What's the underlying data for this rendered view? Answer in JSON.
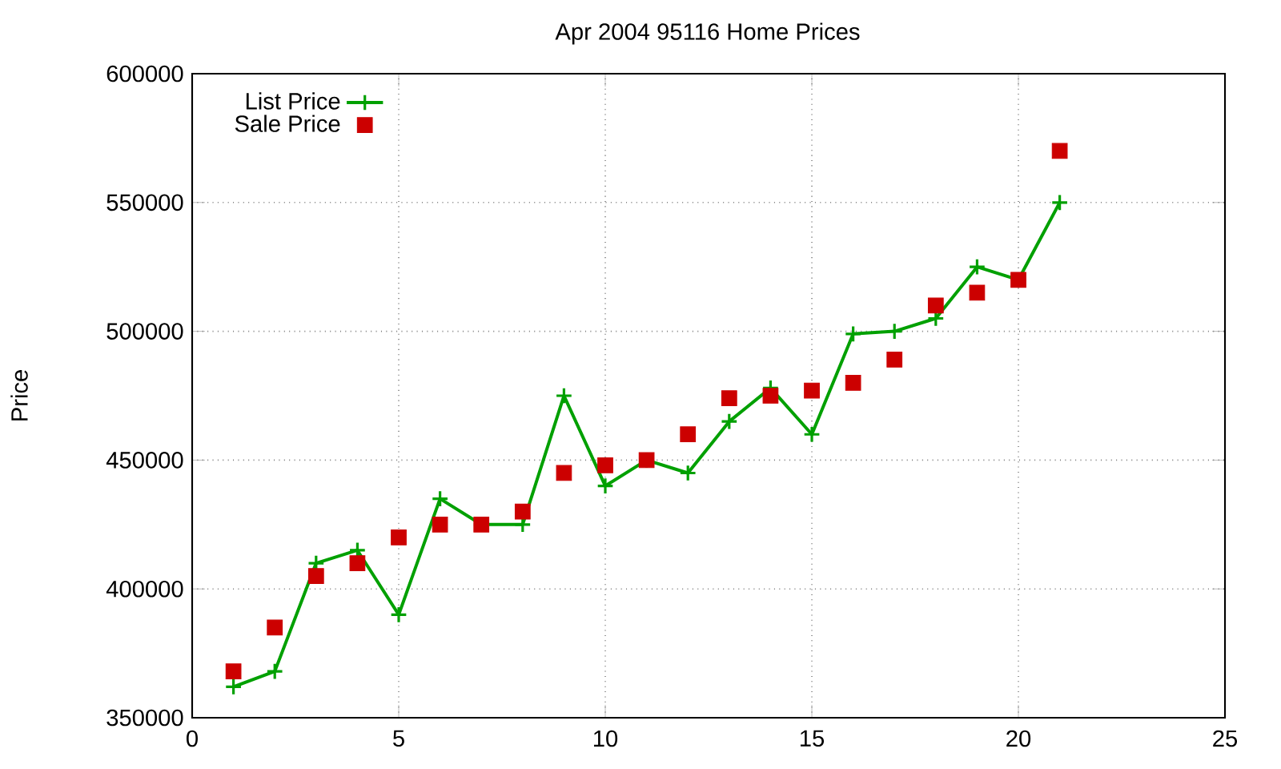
{
  "chart_data": {
    "type": "line",
    "title": "Apr 2004 95116 Home Prices",
    "ylabel": "Price",
    "x": [
      1,
      2,
      3,
      4,
      5,
      6,
      7,
      8,
      9,
      10,
      11,
      12,
      13,
      14,
      15,
      16,
      17,
      18,
      19,
      20,
      21
    ],
    "series": [
      {
        "name": "List Price",
        "marker": "cross",
        "color": "#00a000",
        "values": [
          362000,
          368000,
          410000,
          415000,
          390000,
          435000,
          425000,
          425000,
          475000,
          440000,
          450000,
          445000,
          465000,
          478000,
          460000,
          499000,
          500000,
          505000,
          525000,
          520000,
          550000
        ]
      },
      {
        "name": "Sale Price",
        "type": "scatter",
        "marker": "square",
        "color": "#cc0000",
        "values": [
          368000,
          385000,
          405000,
          410000,
          420000,
          425000,
          425000,
          430000,
          445000,
          448000,
          450000,
          460000,
          474000,
          475000,
          477000,
          480000,
          489000,
          510000,
          515000,
          520000,
          570000
        ]
      }
    ],
    "xlim": [
      0,
      25
    ],
    "xticks": [
      0,
      5,
      10,
      15,
      20,
      25
    ],
    "ylim": [
      350000,
      600000
    ],
    "yticks": [
      350000,
      400000,
      450000,
      500000,
      550000,
      600000
    ],
    "grid": true,
    "legend": "top left"
  }
}
